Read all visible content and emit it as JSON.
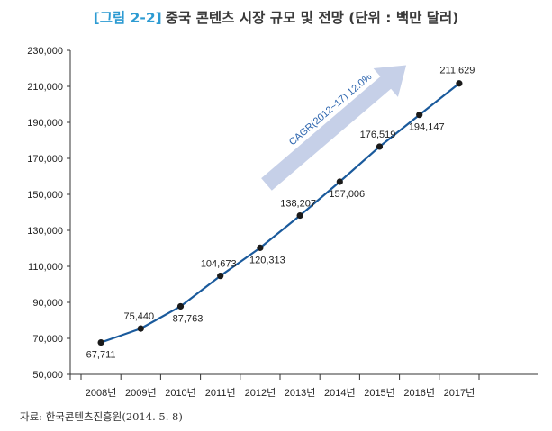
{
  "title": {
    "figure_label": "[그림 2-2]",
    "text": "중국 콘텐츠 시장 규모 및 전망 (단위 : 백만 달러)"
  },
  "source": "자료: 한국콘텐츠진흥원(2014. 5. 8)",
  "annotation": {
    "text": "CAGR(2012~17) 12.0%",
    "arrow_color": "#c6d0e8"
  },
  "chart_data": {
    "type": "line",
    "categories": [
      "2008년",
      "2009년",
      "2010년",
      "2011년",
      "2012년",
      "2013년",
      "2014년",
      "2015년",
      "2016년",
      "2017년"
    ],
    "series": [
      {
        "values": [
          67711,
          75440,
          87763,
          104673,
          120313,
          138207,
          157006,
          176519,
          194147,
          211629
        ]
      }
    ],
    "data_labels": [
      "67,711",
      "75,440",
      "87,763",
      "104,673",
      "120,313",
      "138,207",
      "157,006",
      "176,519",
      "194,147",
      "211,629"
    ],
    "yticks": [
      50000,
      70000,
      90000,
      110000,
      130000,
      150000,
      170000,
      190000,
      210000,
      230000
    ],
    "ytick_labels": [
      "50,000",
      "70,000",
      "90,000",
      "110,000",
      "130,000",
      "150,000",
      "170,000",
      "190,000",
      "210,000",
      "230,000"
    ],
    "ylim": [
      50000,
      230000
    ],
    "grid": false,
    "legend": "none",
    "line_color": "#1a5a9c",
    "marker_color": "#1a1a1a"
  }
}
